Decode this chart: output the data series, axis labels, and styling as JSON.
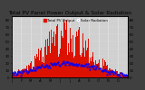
{
  "title": "Total PV Panel Power Output & Solar Radiation",
  "bg_color": "#404040",
  "plot_bg": "#d0d0d0",
  "grid_color": "#a0a0a0",
  "bar_color": "#dd1100",
  "dot_color": "#0000ff",
  "legend_pv_color": "#dd1100",
  "legend_sr_color": "#0000ff",
  "legend_pv": "Total PV Output",
  "legend_sr": "Solar Radiation",
  "n_dashed_lines": 12,
  "title_fontsize": 4.2,
  "tick_fontsize": 2.8,
  "legend_fontsize": 2.8,
  "ylim_left": [
    0,
    85
  ],
  "ylim_right": [
    0,
    85
  ],
  "yticks_left": [
    0,
    10,
    20,
    30,
    40,
    50,
    60,
    70,
    80
  ],
  "yticks_right": [
    0,
    10,
    20,
    30,
    40,
    50,
    60,
    70,
    80
  ]
}
